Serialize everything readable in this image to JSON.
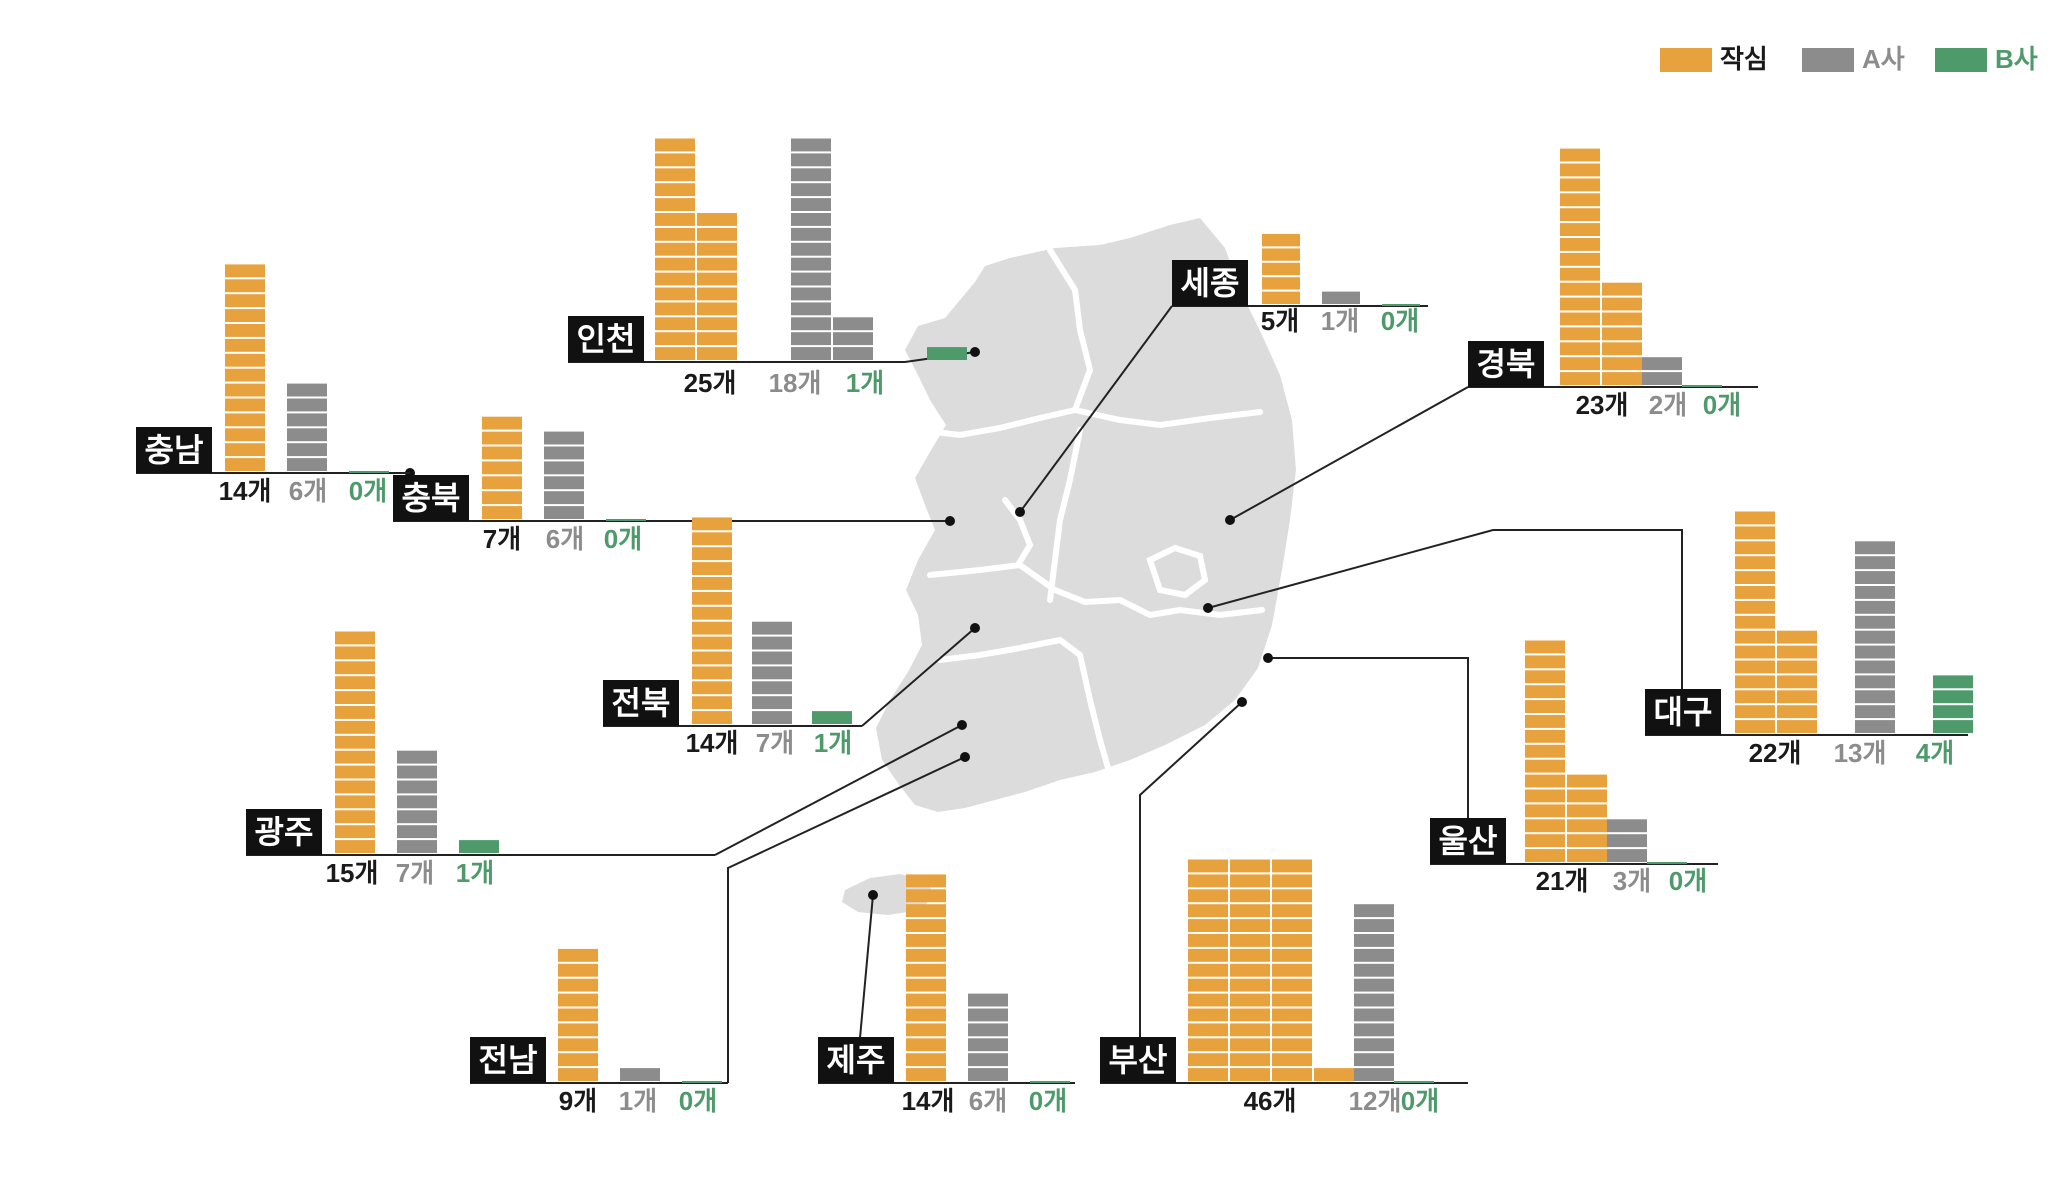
{
  "legend": [
    {
      "label": "작심",
      "color": "#e8a23d"
    },
    {
      "label": "A사",
      "color": "#8c8c8c"
    },
    {
      "label": "B사",
      "color": "#4e9a6b"
    }
  ],
  "chart_data": {
    "type": "bar",
    "unit": "개",
    "series_names": [
      "작심",
      "A사",
      "B사"
    ],
    "legend_position": "top-right",
    "regions": [
      {
        "name": "인천",
        "values": [
          25,
          18,
          1
        ],
        "labels": [
          "25개",
          "18개",
          "1개"
        ]
      },
      {
        "name": "세종",
        "values": [
          5,
          1,
          0
        ],
        "labels": [
          "5개",
          "1개",
          "0개"
        ]
      },
      {
        "name": "충남",
        "values": [
          14,
          6,
          0
        ],
        "labels": [
          "14개",
          "6개",
          "0개"
        ]
      },
      {
        "name": "충북",
        "values": [
          7,
          6,
          0
        ],
        "labels": [
          "7개",
          "6개",
          "0개"
        ]
      },
      {
        "name": "경북",
        "values": [
          23,
          2,
          0
        ],
        "labels": [
          "23개",
          "2개",
          "0개"
        ]
      },
      {
        "name": "대구",
        "values": [
          22,
          13,
          4
        ],
        "labels": [
          "22개",
          "13개",
          "4개"
        ]
      },
      {
        "name": "전북",
        "values": [
          14,
          7,
          1
        ],
        "labels": [
          "14개",
          "7개",
          "1개"
        ]
      },
      {
        "name": "광주",
        "values": [
          15,
          7,
          1
        ],
        "labels": [
          "15개",
          "7개",
          "1개"
        ]
      },
      {
        "name": "울산",
        "values": [
          21,
          3,
          0
        ],
        "labels": [
          "21개",
          "3개",
          "0개"
        ]
      },
      {
        "name": "전남",
        "values": [
          9,
          1,
          0
        ],
        "labels": [
          "9개",
          "1개",
          "0개"
        ]
      },
      {
        "name": "제주",
        "values": [
          14,
          6,
          0
        ],
        "labels": [
          "14개",
          "6개",
          "0개"
        ]
      },
      {
        "name": "부산",
        "values": [
          46,
          12,
          0
        ],
        "labels": [
          "46개",
          "12개",
          "0개"
        ]
      }
    ]
  }
}
